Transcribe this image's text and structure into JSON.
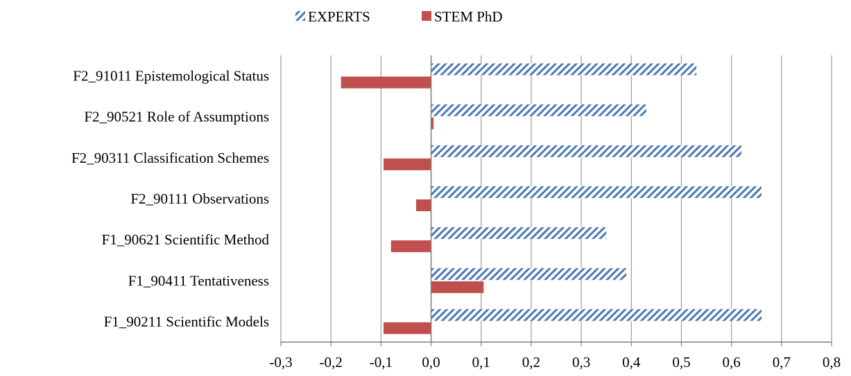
{
  "chart_data": {
    "type": "bar",
    "orientation": "horizontal",
    "categories": [
      "F2_91011 Epistemological Status",
      "F2_90521 Role of Assumptions",
      "F2_90311 Classification Schemes",
      "F2_90111 Observations",
      "F1_90621 Scientific Method",
      "F1_90411 Tentativeness",
      "F1_90211 Scientific Models"
    ],
    "series": [
      {
        "name": "EXPERTS",
        "color": "#4a78b4",
        "pattern": "diagonal-hatch",
        "values": [
          0.53,
          0.43,
          0.62,
          0.66,
          0.35,
          0.39,
          0.66
        ]
      },
      {
        "name": "STEM PhD",
        "color": "#c0504d",
        "pattern": "solid",
        "values": [
          -0.18,
          0.005,
          -0.095,
          -0.03,
          -0.08,
          0.105,
          -0.095
        ]
      }
    ],
    "xlim": [
      -0.3,
      0.8
    ],
    "xticks": [
      "-0,3",
      "-0,2",
      "-0,1",
      "0,0",
      "0,1",
      "0,2",
      "0,3",
      "0,4",
      "0,5",
      "0,6",
      "0,7",
      "0,8"
    ],
    "grid": "vertical",
    "legend_position": "top"
  }
}
